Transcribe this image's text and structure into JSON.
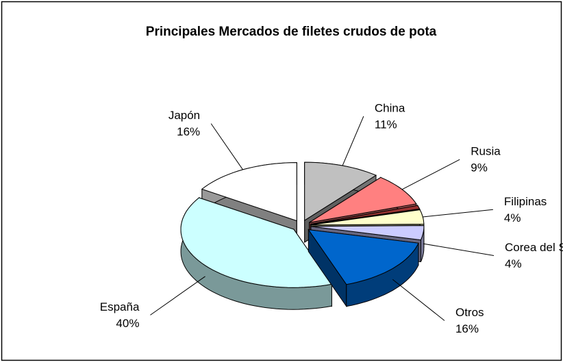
{
  "chart_data": {
    "type": "pie3d",
    "title": "Principales Mercados de filetes crudos de pota",
    "categories": [
      "Japón",
      "China",
      "Rusia",
      null,
      "Filipinas",
      "Corea del Sur",
      "Otros",
      "España"
    ],
    "values": [
      16,
      11,
      9,
      1,
      4,
      4,
      16,
      40
    ],
    "value_labels": [
      "16%",
      "11%",
      "9%",
      null,
      "4%",
      "4%",
      "16%",
      "40%"
    ],
    "colors": [
      "#ffffff",
      "#c0c0c0",
      "#ff8080",
      "#993333",
      "#ffffcc",
      "#ccccff",
      "#0066cc",
      "#ccffff"
    ]
  }
}
